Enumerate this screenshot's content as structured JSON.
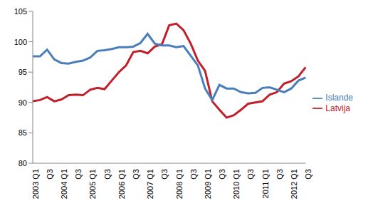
{
  "chart_data": {
    "type": "line",
    "categories": [
      "2003 Q1",
      null,
      "Q3",
      null,
      "2004 Q1",
      null,
      "Q3",
      null,
      "2005 Q1",
      null,
      "Q3",
      null,
      "2006 Q1",
      null,
      "Q3",
      null,
      "2007 Q1",
      null,
      "Q3",
      null,
      "2008 Q1",
      null,
      "Q3",
      null,
      "2009 Q1",
      null,
      "Q3",
      null,
      "2010 Q1",
      null,
      "Q3",
      null,
      "2011 Q1",
      null,
      "Q3",
      null,
      "2012 Q1",
      null,
      "Q3"
    ],
    "series": [
      {
        "name": "Latvija",
        "color": "#c0202a",
        "values": [
          90.2,
          90.4,
          90.9,
          90.2,
          90.5,
          91.2,
          91.3,
          91.2,
          92.1,
          92.4,
          92.2,
          93.6,
          95.0,
          96.1,
          98.3,
          98.5,
          98.1,
          99.2,
          99.6,
          102.7,
          103.0,
          101.9,
          99.7,
          96.9,
          95.2,
          90.2,
          88.8,
          87.5,
          87.9,
          88.8,
          89.8,
          90.0,
          90.2,
          91.3,
          91.7,
          93.1,
          93.5,
          94.3,
          95.8
        ]
      },
      {
        "name": "Islande",
        "color": "#4a7ebb",
        "values": [
          97.6,
          97.6,
          98.7,
          97.1,
          96.5,
          96.4,
          96.7,
          96.9,
          97.4,
          98.5,
          98.6,
          98.8,
          99.1,
          99.1,
          99.2,
          99.8,
          101.3,
          99.7,
          99.4,
          99.4,
          99.1,
          99.3,
          97.7,
          96.1,
          92.3,
          90.4,
          92.9,
          92.3,
          92.3,
          91.7,
          91.5,
          91.6,
          92.4,
          92.5,
          92.1,
          91.7,
          92.3,
          93.6,
          94.1
        ]
      }
    ],
    "ylim": [
      80,
      105
    ],
    "yticks": [
      80,
      85,
      90,
      95,
      100,
      105
    ],
    "grid": false,
    "legend": "right"
  }
}
